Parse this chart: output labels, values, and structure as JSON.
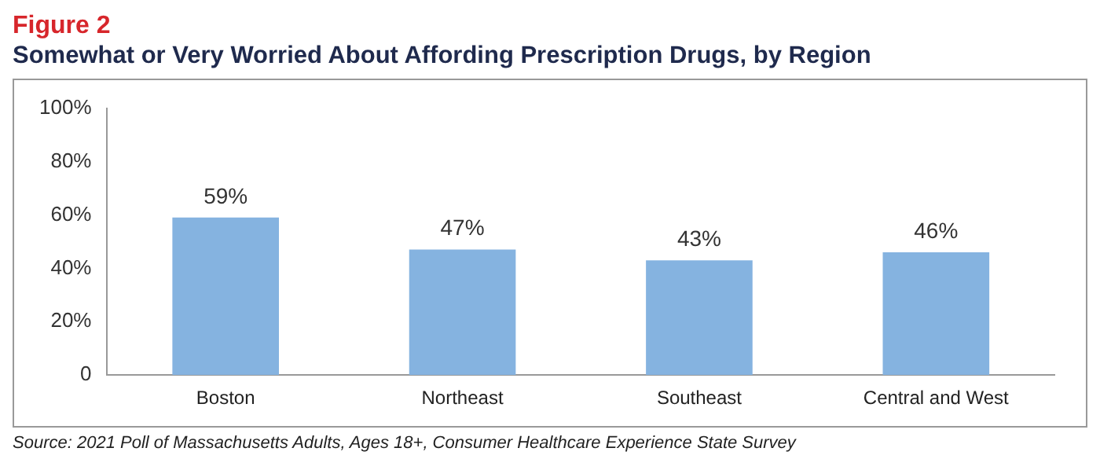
{
  "chart_data": {
    "type": "bar",
    "title": "Figure 2",
    "subtitle": "Somewhat or Very Worried About Affording Prescription Drugs, by Region",
    "categories": [
      "Boston",
      "Northeast",
      "Southeast",
      "Central and West"
    ],
    "values": [
      59,
      47,
      43,
      46
    ],
    "color": "#85b3e0",
    "value_labels": [
      "59%",
      "47%",
      "43%",
      "46%"
    ],
    "ylim": [
      0,
      100
    ],
    "yticks": [
      0,
      {
        "value": 20,
        "label": "20%"
      },
      {
        "value": 40,
        "label": "40%"
      },
      {
        "value": 60,
        "label": "60%"
      },
      {
        "value": 80,
        "label": "80%"
      },
      {
        "value": 100,
        "label": "100%"
      }
    ],
    "grid": false,
    "legend": false,
    "annotations": [
      "Source: 2021 Poll of Massachusetts Adults, Ages 18+, Consumer Healthcare Experience State Survey"
    ]
  }
}
